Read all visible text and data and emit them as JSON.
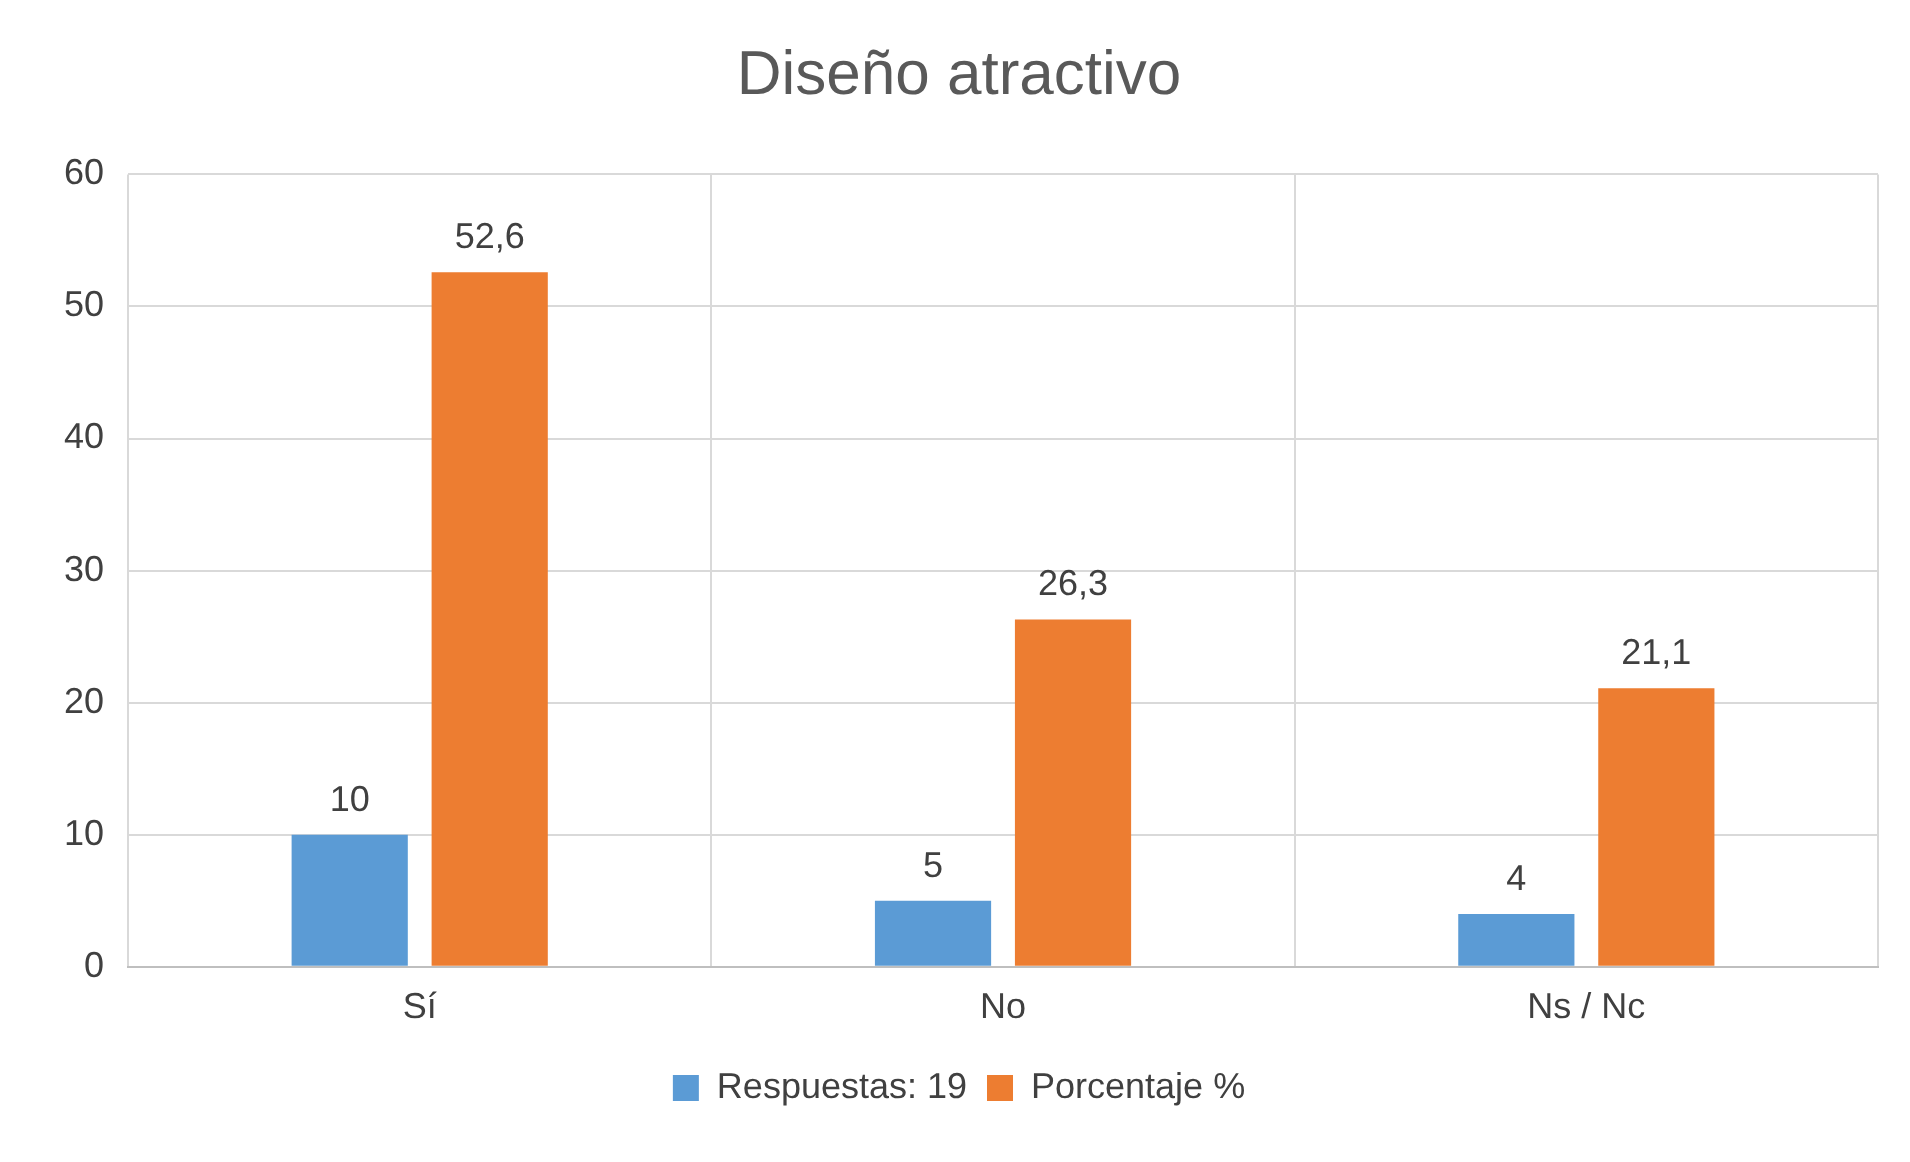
{
  "chart_data": {
    "type": "bar",
    "title": "Diseño atractivo",
    "categories": [
      "Sí",
      "No",
      "Ns / Nc"
    ],
    "series": [
      {
        "name": "Respuestas: 19",
        "color": "#5b9bd5",
        "values": [
          10,
          5,
          4
        ],
        "value_labels": [
          "10",
          "5",
          "4"
        ]
      },
      {
        "name": "Porcentaje %",
        "color": "#ed7d31",
        "values": [
          52.6,
          26.3,
          21.1
        ],
        "value_labels": [
          "52,6",
          "26,3",
          "21,1"
        ]
      }
    ],
    "ylim": [
      0,
      60
    ],
    "yticks": [
      0,
      10,
      20,
      30,
      40,
      50,
      60
    ],
    "grid": true,
    "legend": "bottom"
  }
}
